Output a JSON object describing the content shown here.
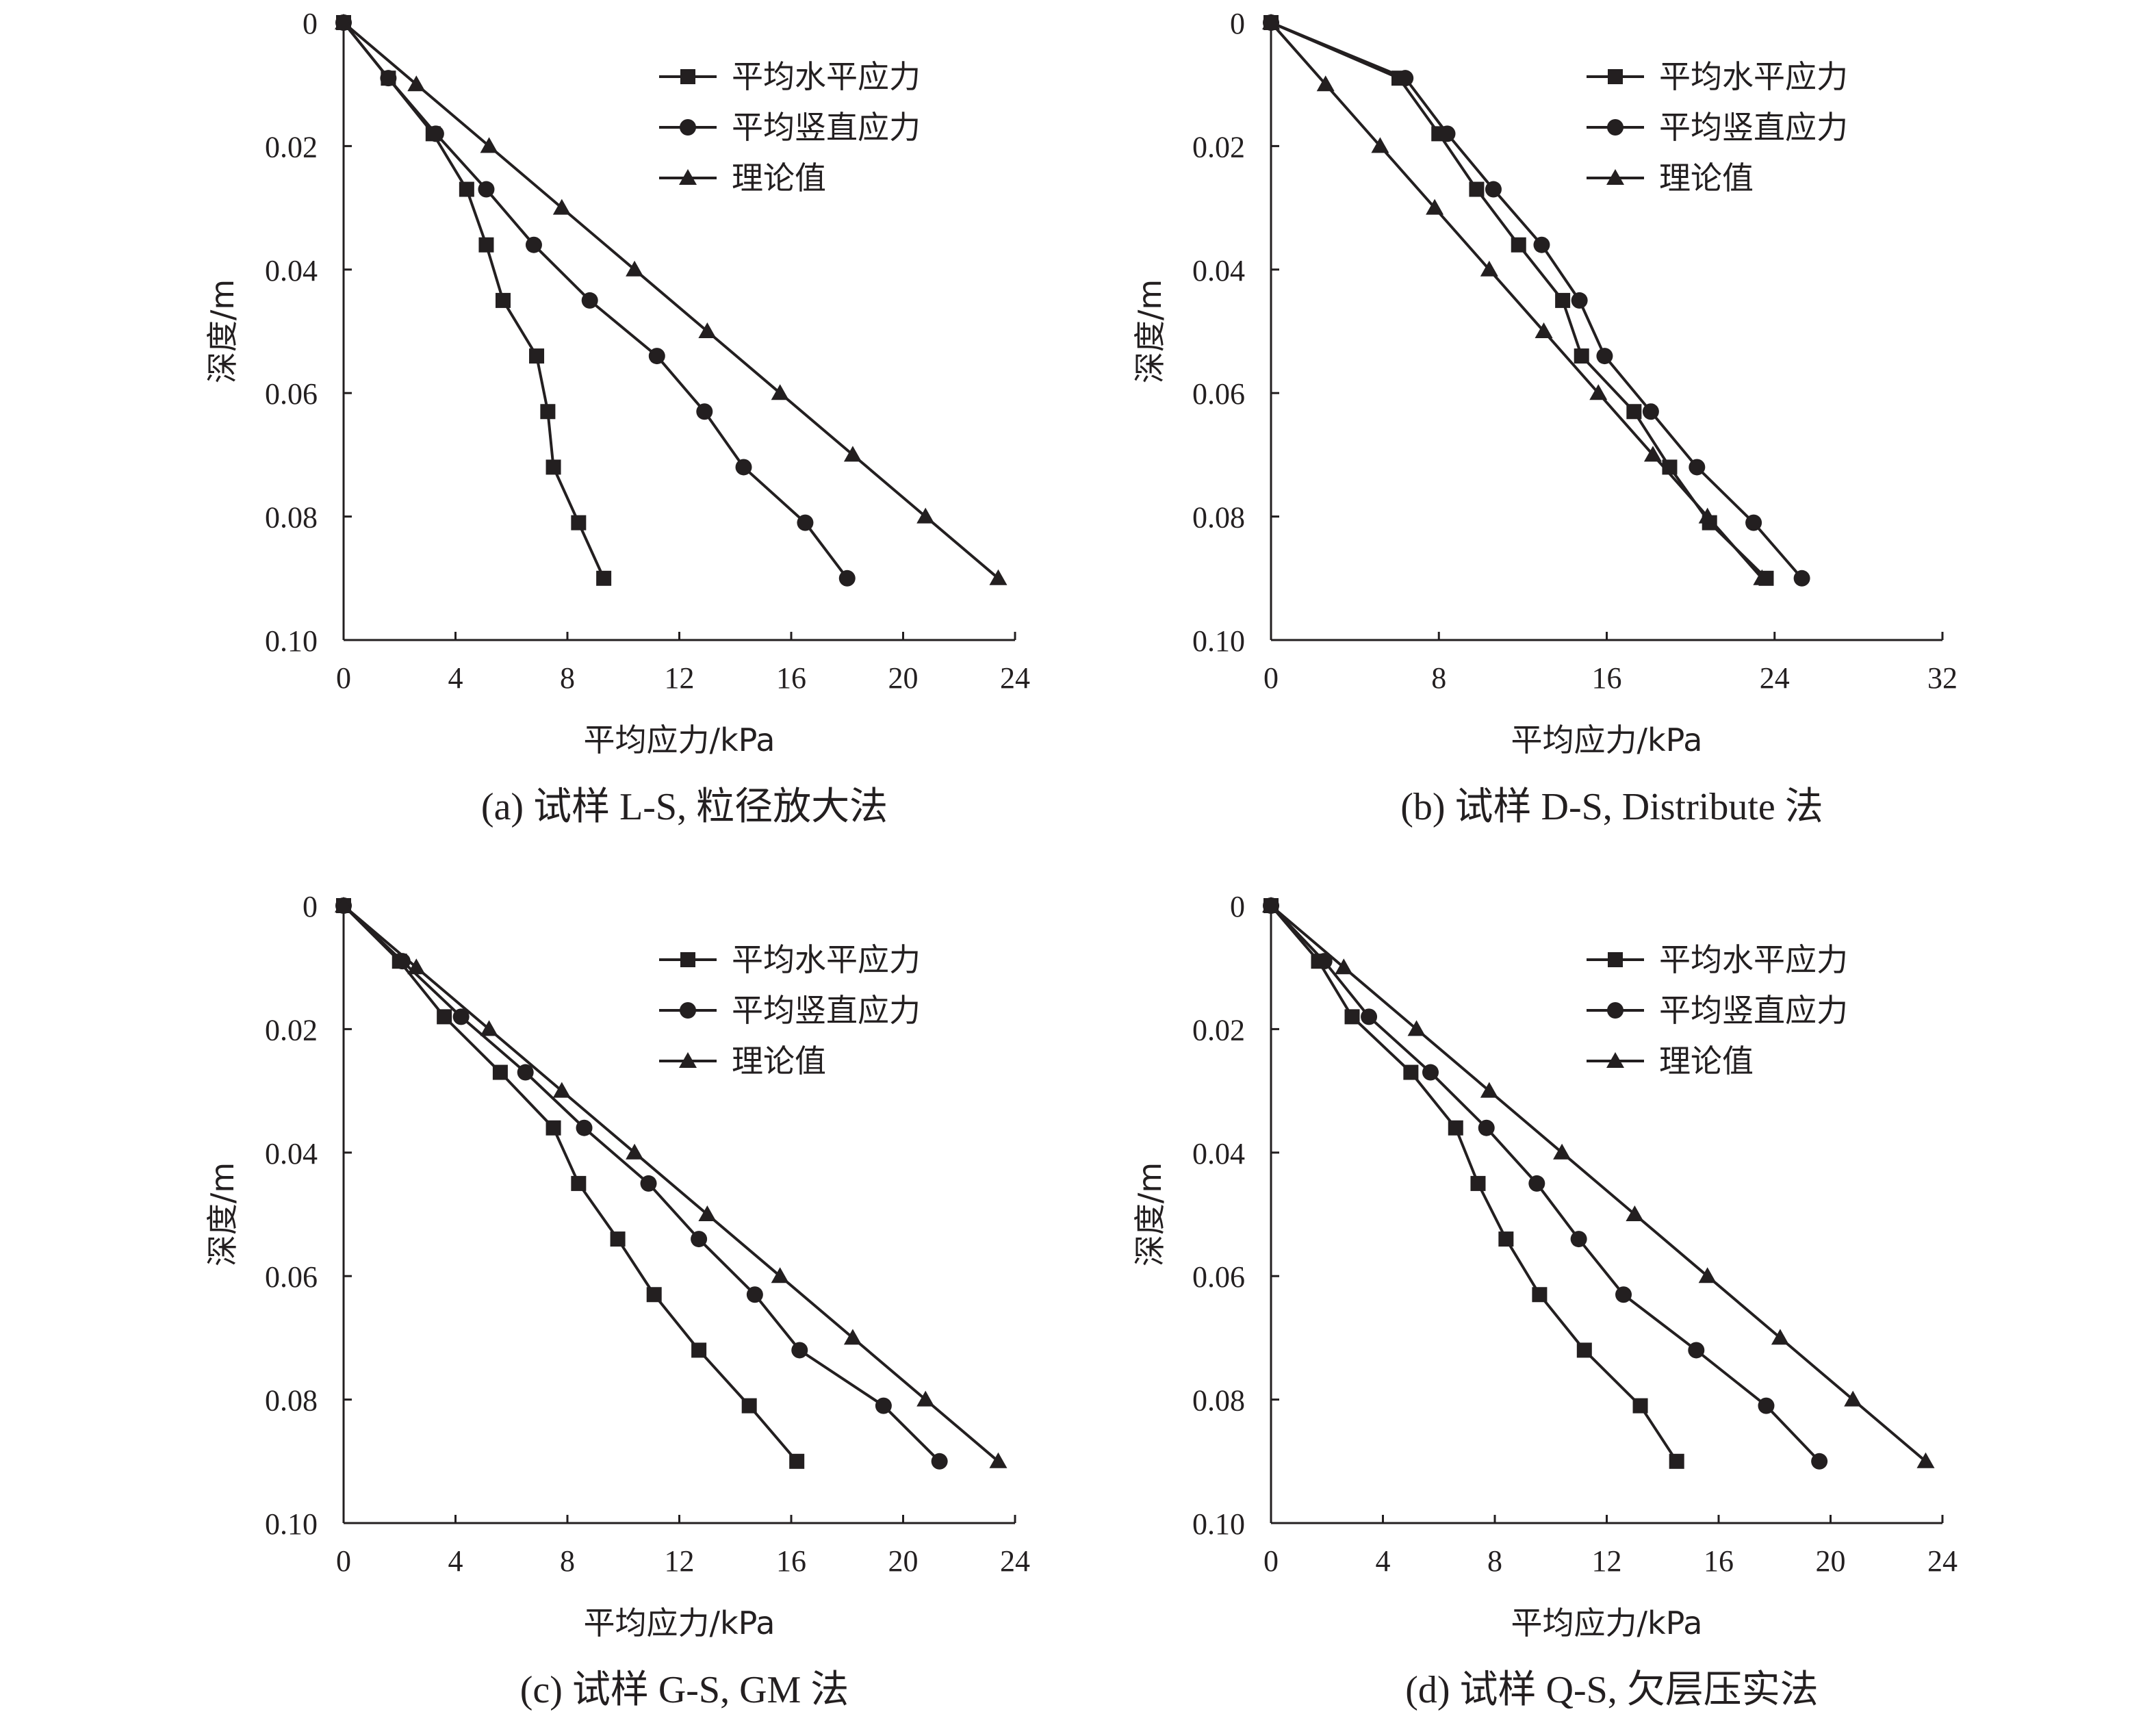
{
  "chart_data": [
    {
      "type": "line",
      "caption": "(a) 试样 L-S, 粒径放大法",
      "xlabel": "平均应力/kPa",
      "ylabel": "深度/m",
      "xlim": [
        0,
        24
      ],
      "ylim": [
        0,
        0.1
      ],
      "y_inverted": true,
      "xticks": [
        "0",
        "4",
        "8",
        "12",
        "16",
        "20",
        "24"
      ],
      "yticks": [
        "0",
        "0.02",
        "0.04",
        "0.06",
        "0.08",
        "0.10"
      ],
      "legend_position": "top-right",
      "series": [
        {
          "name": "平均水平应力",
          "marker": "square",
          "x": [
            0,
            1.6,
            3.2,
            4.4,
            5.1,
            5.7,
            6.9,
            7.3,
            7.5,
            8.4,
            9.3
          ],
          "y": [
            0,
            0.009,
            0.018,
            0.027,
            0.036,
            0.045,
            0.054,
            0.063,
            0.072,
            0.081,
            0.09
          ]
        },
        {
          "name": "平均竖直应力",
          "marker": "circle",
          "x": [
            0,
            1.6,
            3.3,
            5.1,
            6.8,
            8.8,
            11.2,
            12.9,
            14.3,
            16.5,
            18.0
          ],
          "y": [
            0,
            0.009,
            0.018,
            0.027,
            0.036,
            0.045,
            0.054,
            0.063,
            0.072,
            0.081,
            0.09
          ]
        },
        {
          "name": "理论值",
          "marker": "triangle",
          "x": [
            0,
            2.6,
            5.2,
            7.8,
            10.4,
            13.0,
            15.6,
            18.2,
            20.8,
            23.4
          ],
          "y": [
            0,
            0.01,
            0.02,
            0.03,
            0.04,
            0.05,
            0.06,
            0.07,
            0.08,
            0.09
          ]
        }
      ]
    },
    {
      "type": "line",
      "caption": "(b) 试样 D-S, Distribute 法",
      "xlabel": "平均应力/kPa",
      "ylabel": "深度/m",
      "xlim": [
        0,
        32
      ],
      "ylim": [
        0,
        0.1
      ],
      "y_inverted": true,
      "xticks": [
        "0",
        "8",
        "16",
        "24",
        "32"
      ],
      "yticks": [
        "0",
        "0.02",
        "0.04",
        "0.06",
        "0.08",
        "0.10"
      ],
      "legend_position": "top-right",
      "series": [
        {
          "name": "平均水平应力",
          "marker": "square",
          "x": [
            0,
            6.1,
            8.0,
            9.8,
            11.8,
            13.9,
            14.8,
            17.3,
            19.0,
            20.9,
            23.6
          ],
          "y": [
            0,
            0.009,
            0.018,
            0.027,
            0.036,
            0.045,
            0.054,
            0.063,
            0.072,
            0.081,
            0.09
          ]
        },
        {
          "name": "平均竖直应力",
          "marker": "circle",
          "x": [
            0,
            6.4,
            8.4,
            10.6,
            12.9,
            14.7,
            15.9,
            18.1,
            20.3,
            23.0,
            25.3
          ],
          "y": [
            0,
            0.009,
            0.018,
            0.027,
            0.036,
            0.045,
            0.054,
            0.063,
            0.072,
            0.081,
            0.09
          ]
        },
        {
          "name": "理论值",
          "marker": "triangle",
          "x": [
            0,
            2.6,
            5.2,
            7.8,
            10.4,
            13.0,
            15.6,
            18.2,
            20.8,
            23.4
          ],
          "y": [
            0,
            0.01,
            0.02,
            0.03,
            0.04,
            0.05,
            0.06,
            0.07,
            0.08,
            0.09
          ]
        }
      ]
    },
    {
      "type": "line",
      "caption": "(c) 试样 G-S, GM 法",
      "xlabel": "平均应力/kPa",
      "ylabel": "深度/m",
      "xlim": [
        0,
        24
      ],
      "ylim": [
        0,
        0.1
      ],
      "y_inverted": true,
      "xticks": [
        "0",
        "4",
        "8",
        "12",
        "16",
        "20",
        "24"
      ],
      "yticks": [
        "0",
        "0.02",
        "0.04",
        "0.06",
        "0.08",
        "0.10"
      ],
      "legend_position": "top-right",
      "series": [
        {
          "name": "平均水平应力",
          "marker": "square",
          "x": [
            0,
            2.0,
            3.6,
            5.6,
            7.5,
            8.4,
            9.8,
            11.1,
            12.7,
            14.5,
            16.2
          ],
          "y": [
            0,
            0.009,
            0.018,
            0.027,
            0.036,
            0.045,
            0.054,
            0.063,
            0.072,
            0.081,
            0.09
          ]
        },
        {
          "name": "平均竖直应力",
          "marker": "circle",
          "x": [
            0,
            2.1,
            4.2,
            6.5,
            8.6,
            10.9,
            12.7,
            14.7,
            16.3,
            19.3,
            21.3
          ],
          "y": [
            0,
            0.009,
            0.018,
            0.027,
            0.036,
            0.045,
            0.054,
            0.063,
            0.072,
            0.081,
            0.09
          ]
        },
        {
          "name": "理论值",
          "marker": "triangle",
          "x": [
            0,
            2.6,
            5.2,
            7.8,
            10.4,
            13.0,
            15.6,
            18.2,
            20.8,
            23.4
          ],
          "y": [
            0,
            0.01,
            0.02,
            0.03,
            0.04,
            0.05,
            0.06,
            0.07,
            0.08,
            0.09
          ]
        }
      ]
    },
    {
      "type": "line",
      "caption": "(d) 试样 Q-S, 欠层压实法",
      "xlabel": "平均应力/kPa",
      "ylabel": "深度/m",
      "xlim": [
        0,
        24
      ],
      "ylim": [
        0,
        0.1
      ],
      "y_inverted": true,
      "xticks": [
        "0",
        "4",
        "8",
        "12",
        "16",
        "20",
        "24"
      ],
      "yticks": [
        "0",
        "0.02",
        "0.04",
        "0.06",
        "0.08",
        "0.10"
      ],
      "legend_position": "top-right",
      "series": [
        {
          "name": "平均水平应力",
          "marker": "square",
          "x": [
            0,
            1.7,
            2.9,
            5.0,
            6.6,
            7.4,
            8.4,
            9.6,
            11.2,
            13.2,
            14.5
          ],
          "y": [
            0,
            0.009,
            0.018,
            0.027,
            0.036,
            0.045,
            0.054,
            0.063,
            0.072,
            0.081,
            0.09
          ]
        },
        {
          "name": "平均竖直应力",
          "marker": "circle",
          "x": [
            0,
            1.9,
            3.5,
            5.7,
            7.7,
            9.5,
            11.0,
            12.6,
            15.2,
            17.7,
            19.6
          ],
          "y": [
            0,
            0.009,
            0.018,
            0.027,
            0.036,
            0.045,
            0.054,
            0.063,
            0.072,
            0.081,
            0.09
          ]
        },
        {
          "name": "理论值",
          "marker": "triangle",
          "x": [
            0,
            2.6,
            5.2,
            7.8,
            10.4,
            13.0,
            15.6,
            18.2,
            20.8,
            23.4
          ],
          "y": [
            0,
            0.01,
            0.02,
            0.03,
            0.04,
            0.05,
            0.06,
            0.07,
            0.08,
            0.09
          ]
        }
      ]
    }
  ]
}
